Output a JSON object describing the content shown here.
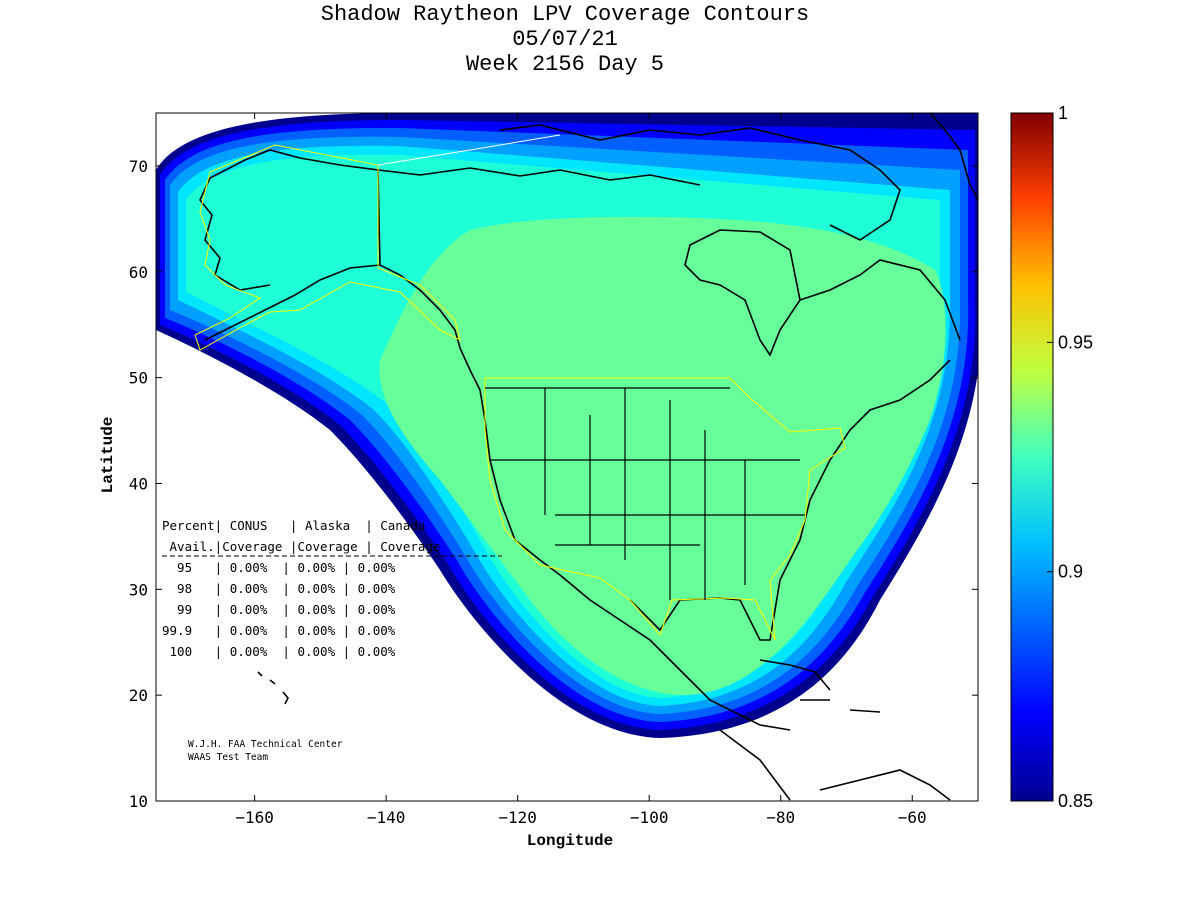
{
  "title": {
    "line1": "Shadow Raytheon LPV Coverage Contours",
    "line2": "05/07/21",
    "line3": "Week 2156 Day 5"
  },
  "axes": {
    "xlabel": "Longitude",
    "ylabel": "Latitude",
    "xlim": [
      -175,
      -50
    ],
    "ylim": [
      10,
      75
    ],
    "xticks": [
      -160,
      -140,
      -120,
      -100,
      -80,
      -60
    ],
    "yticks": [
      10,
      20,
      30,
      40,
      50,
      60,
      70
    ]
  },
  "colorbar": {
    "min": 0.85,
    "max": 1,
    "ticks": [
      "1",
      "0.95",
      "0.9",
      "0.85"
    ],
    "colors": [
      "#00008f",
      "#0000ff",
      "#00a0ff",
      "#00ffff",
      "#66ff99",
      "#ffff00",
      "#ff8000",
      "#ff0000",
      "#800000"
    ]
  },
  "table": {
    "header1": "Percent| CONUS   | Alaska  | Canada",
    "header2": " Avail.|Coverage |Coverage | Coverage",
    "rows": [
      "  95   | 0.00%  | 0.00% | 0.00%",
      "  98   | 0.00%  | 0.00% | 0.00%",
      "  99   | 0.00%  | 0.00% | 0.00%",
      "99.9   | 0.00%  | 0.00% | 0.00%",
      " 100   | 0.00%  | 0.00% | 0.00%"
    ]
  },
  "credits": {
    "line1": "W.J.H. FAA Technical Center",
    "line2": "WAAS Test Team"
  },
  "chart_data": {
    "type": "heatmap",
    "title": "Shadow Raytheon LPV Coverage Contours",
    "xlabel": "Longitude",
    "ylabel": "Latitude",
    "xlim": [
      -175,
      -50
    ],
    "ylim": [
      10,
      75
    ],
    "zlim": [
      0.85,
      1
    ],
    "description_levels": [
      {
        "region": "interior North America",
        "value": 0.91
      },
      {
        "region": "outer ring",
        "value": 0.9
      },
      {
        "region": "fringe",
        "value": 0.87
      }
    ]
  }
}
